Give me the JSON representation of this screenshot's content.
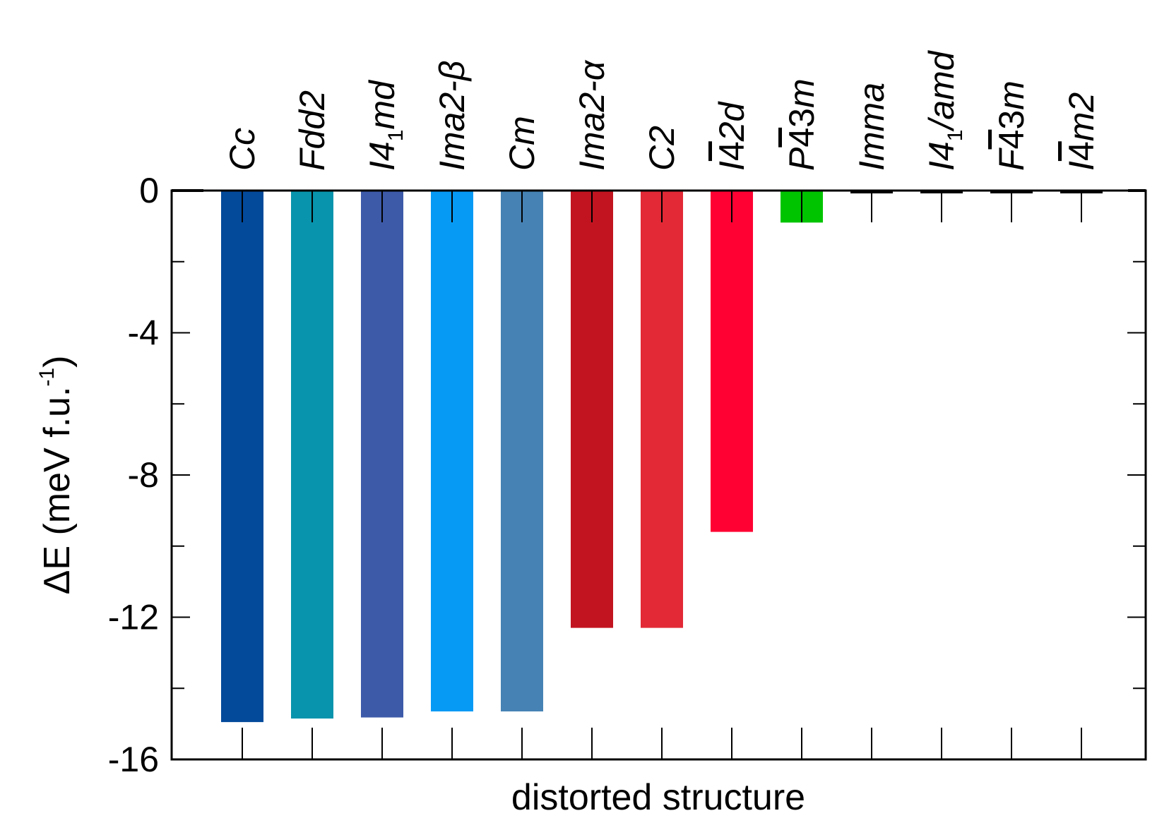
{
  "chart_data": {
    "type": "bar",
    "title": "",
    "xlabel": "distorted structure",
    "ylabel": {
      "main": "ΔE (meV f.u.",
      "sup": "-1",
      "close": ")"
    },
    "ylim": [
      -16,
      0
    ],
    "yticks": [
      "0",
      "-4",
      "-8",
      "-12",
      "-16"
    ],
    "categories": [
      {
        "main": "Cc",
        "sub": "",
        "rest": "",
        "overline": "",
        "upright_suffix": ""
      },
      {
        "main": "Fdd2",
        "sub": "",
        "rest": "",
        "overline": "",
        "upright_suffix": ""
      },
      {
        "main": "I4",
        "sub": "1",
        "rest": "md",
        "overline": "",
        "upright_suffix": ""
      },
      {
        "main": "Ima2-β",
        "sub": "",
        "rest": "",
        "overline": "",
        "upright_suffix": ""
      },
      {
        "main": "Cm",
        "sub": "",
        "rest": "",
        "overline": "",
        "upright_suffix": ""
      },
      {
        "main": "Ima2-α",
        "sub": "",
        "rest": "",
        "overline": "",
        "upright_suffix": ""
      },
      {
        "main": "C2",
        "sub": "",
        "rest": "",
        "overline": "",
        "upright_suffix": ""
      },
      {
        "main": "I",
        "sub": "",
        "rest": "2d",
        "overline": "4",
        "upright_suffix": ""
      },
      {
        "main": "P",
        "sub": "",
        "rest": "m",
        "overline": "4",
        "upright_suffix": "3"
      },
      {
        "main": "Imma",
        "sub": "",
        "rest": "",
        "overline": "",
        "upright_suffix": ""
      },
      {
        "main": "I4",
        "sub": "1",
        "rest": "/amd",
        "overline": "",
        "upright_suffix": ""
      },
      {
        "main": "F",
        "sub": "",
        "rest": "m",
        "overline": "4",
        "upright_suffix": "3"
      },
      {
        "main": "I",
        "sub": "",
        "rest": "m2",
        "overline": "4",
        "upright_suffix": ""
      }
    ],
    "values": [
      -14.95,
      -14.85,
      -14.82,
      -14.65,
      -14.65,
      -12.3,
      -12.3,
      -9.6,
      -0.9,
      -0.08,
      -0.06,
      -0.06,
      -0.06
    ],
    "colors": [
      "#034a9b",
      "#0894ad",
      "#3d5aa9",
      "#069af5",
      "#4682b4",
      "#c21420",
      "#e22935",
      "#ff0233",
      "#00c400",
      "#000000",
      "#000000",
      "#000000",
      "#000000"
    ],
    "grid": false,
    "legend": "none"
  }
}
